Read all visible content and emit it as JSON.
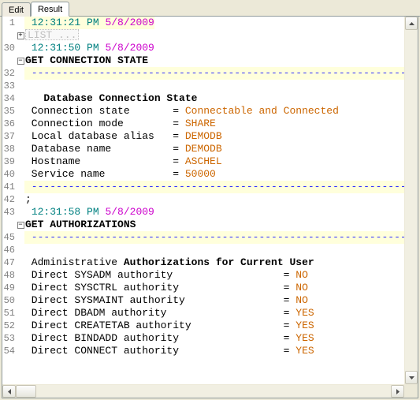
{
  "tabs": {
    "edit": "Edit",
    "result": "Result"
  },
  "dash_line": " -------------------------------------------------------------",
  "lines": [
    {
      "n": "1",
      "fold": "",
      "hl": true,
      "segs": [
        [
          " ",
          "c-text"
        ],
        [
          "12:31:21 PM",
          "c-time"
        ],
        [
          " ",
          "c-text"
        ],
        [
          "5/8/2009",
          "c-date"
        ]
      ]
    },
    {
      "n": "",
      "fold": "+",
      "hl": false,
      "list": "LIST ..."
    },
    {
      "n": "30",
      "fold": "",
      "hl": false,
      "segs": [
        [
          " ",
          "c-text"
        ],
        [
          "12:31:50 PM",
          "c-time"
        ],
        [
          " ",
          "c-text"
        ],
        [
          "5/8/2009",
          "c-date"
        ]
      ]
    },
    {
      "n": "",
      "fold": "-",
      "hl": false,
      "segs": [
        [
          "GET CONNECTION STATE",
          "c-key"
        ]
      ]
    },
    {
      "n": "32",
      "fold": "",
      "hl": true,
      "dash": true
    },
    {
      "n": "33",
      "fold": "",
      "hl": false,
      "segs": [
        [
          "",
          "c-text"
        ]
      ]
    },
    {
      "n": "34",
      "fold": "",
      "hl": false,
      "segs": [
        [
          "   Database Connection State",
          "c-key"
        ]
      ]
    },
    {
      "n": "35",
      "fold": "",
      "hl": false,
      "segs": [
        [
          " Connection state       ",
          "c-text"
        ],
        [
          "= ",
          "c-text"
        ],
        [
          "Connectable and Connected",
          "c-val"
        ]
      ]
    },
    {
      "n": "36",
      "fold": "",
      "hl": false,
      "segs": [
        [
          " Connection mode        ",
          "c-text"
        ],
        [
          "= ",
          "c-text"
        ],
        [
          "SHARE",
          "c-val"
        ]
      ]
    },
    {
      "n": "37",
      "fold": "",
      "hl": false,
      "segs": [
        [
          " Local database alias   ",
          "c-text"
        ],
        [
          "= ",
          "c-text"
        ],
        [
          "DEMODB",
          "c-val"
        ]
      ]
    },
    {
      "n": "38",
      "fold": "",
      "hl": false,
      "segs": [
        [
          " Database name          ",
          "c-text"
        ],
        [
          "= ",
          "c-text"
        ],
        [
          "DEMODB",
          "c-val"
        ]
      ]
    },
    {
      "n": "39",
      "fold": "",
      "hl": false,
      "segs": [
        [
          " Hostname               ",
          "c-text"
        ],
        [
          "= ",
          "c-text"
        ],
        [
          "ASCHEL",
          "c-val"
        ]
      ]
    },
    {
      "n": "40",
      "fold": "",
      "hl": false,
      "segs": [
        [
          " Service name           ",
          "c-text"
        ],
        [
          "= ",
          "c-text"
        ],
        [
          "50000",
          "c-val"
        ]
      ]
    },
    {
      "n": "41",
      "fold": "",
      "hl": true,
      "dash": true
    },
    {
      "n": "42",
      "fold": "",
      "hl": false,
      "segs": [
        [
          ";",
          "c-text"
        ]
      ]
    },
    {
      "n": "43",
      "fold": "",
      "hl": false,
      "segs": [
        [
          " ",
          "c-text"
        ],
        [
          "12:31:58 PM",
          "c-time"
        ],
        [
          " ",
          "c-text"
        ],
        [
          "5/8/2009",
          "c-date"
        ]
      ]
    },
    {
      "n": "",
      "fold": "-",
      "hl": false,
      "segs": [
        [
          "GET AUTHORIZATIONS",
          "c-key"
        ]
      ]
    },
    {
      "n": "45",
      "fold": "",
      "hl": true,
      "dash": true
    },
    {
      "n": "46",
      "fold": "",
      "hl": false,
      "segs": [
        [
          "",
          "c-text"
        ]
      ]
    },
    {
      "n": "47",
      "fold": "",
      "hl": false,
      "segs": [
        [
          " Administrative ",
          "c-text"
        ],
        [
          "Authorizations for Current User",
          "c-key"
        ]
      ]
    },
    {
      "n": "48",
      "fold": "",
      "hl": false,
      "segs": [
        [
          " Direct SYSADM authority                  ",
          "c-text"
        ],
        [
          "= ",
          "c-text"
        ],
        [
          "NO",
          "c-val"
        ]
      ]
    },
    {
      "n": "49",
      "fold": "",
      "hl": false,
      "segs": [
        [
          " Direct SYSCTRL authority                 ",
          "c-text"
        ],
        [
          "= ",
          "c-text"
        ],
        [
          "NO",
          "c-val"
        ]
      ]
    },
    {
      "n": "50",
      "fold": "",
      "hl": false,
      "segs": [
        [
          " Direct SYSMAINT authority                ",
          "c-text"
        ],
        [
          "= ",
          "c-text"
        ],
        [
          "NO",
          "c-val"
        ]
      ]
    },
    {
      "n": "51",
      "fold": "",
      "hl": false,
      "segs": [
        [
          " Direct DBADM authority                   ",
          "c-text"
        ],
        [
          "= ",
          "c-text"
        ],
        [
          "YES",
          "c-val"
        ]
      ]
    },
    {
      "n": "52",
      "fold": "",
      "hl": false,
      "segs": [
        [
          " Direct CREATETAB authority               ",
          "c-text"
        ],
        [
          "= ",
          "c-text"
        ],
        [
          "YES",
          "c-val"
        ]
      ]
    },
    {
      "n": "53",
      "fold": "",
      "hl": false,
      "segs": [
        [
          " Direct BINDADD authority                 ",
          "c-text"
        ],
        [
          "= ",
          "c-text"
        ],
        [
          "YES",
          "c-val"
        ]
      ]
    },
    {
      "n": "54",
      "fold": "",
      "hl": false,
      "segs": [
        [
          " Direct CONNECT authority                 ",
          "c-text"
        ],
        [
          "= ",
          "c-text"
        ],
        [
          "YES",
          "c-val"
        ]
      ]
    }
  ]
}
